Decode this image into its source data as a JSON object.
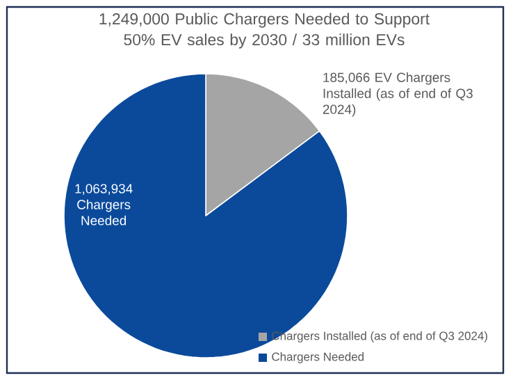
{
  "chart_data": {
    "type": "pie",
    "title": "1,249,000 Public Chargers Needed to Support 50% EV sales by 2030 / 33 million EVs",
    "categories": [
      "Chargers Installed (as of end of Q3 2024)",
      "Chargers Needed"
    ],
    "values": [
      185066,
      1063934
    ],
    "colors": [
      "#a5a5a5",
      "#0b4a9b"
    ],
    "value_labels": [
      "185,066 EV Chargers Installed (as of end of Q3 2024)",
      "1,063,934 Chargers Needed"
    ],
    "legend": "bottom"
  }
}
